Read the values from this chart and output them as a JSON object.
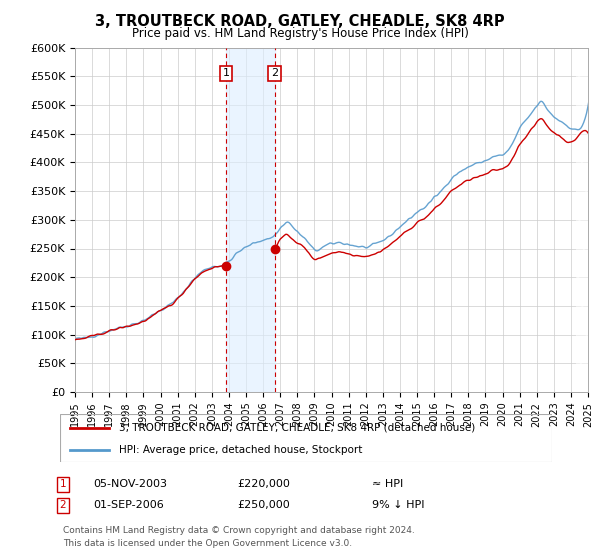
{
  "title": "3, TROUTBECK ROAD, GATLEY, CHEADLE, SK8 4RP",
  "subtitle": "Price paid vs. HM Land Registry's House Price Index (HPI)",
  "ylim": [
    0,
    600000
  ],
  "yticks": [
    0,
    50000,
    100000,
    150000,
    200000,
    250000,
    300000,
    350000,
    400000,
    450000,
    500000,
    550000,
    600000
  ],
  "ytick_labels": [
    "£0",
    "£50K",
    "£100K",
    "£150K",
    "£200K",
    "£250K",
    "£300K",
    "£350K",
    "£400K",
    "£450K",
    "£500K",
    "£550K",
    "£600K"
  ],
  "sale1_date": 2003.84,
  "sale1_price": 220000,
  "sale1_label": "05-NOV-2003",
  "sale1_price_label": "£220,000",
  "sale1_hpi_label": "≈ HPI",
  "sale2_date": 2006.67,
  "sale2_price": 250000,
  "sale2_label": "01-SEP-2006",
  "sale2_price_label": "£250,000",
  "sale2_hpi_label": "9% ↓ HPI",
  "property_color": "#cc0000",
  "hpi_color": "#5599cc",
  "sale_marker_color": "#cc0000",
  "shade_color": "#ddeeff",
  "legend1": "3, TROUTBECK ROAD, GATLEY, CHEADLE, SK8 4RP (detached house)",
  "legend2": "HPI: Average price, detached house, Stockport",
  "footnote1": "Contains HM Land Registry data © Crown copyright and database right 2024.",
  "footnote2": "This data is licensed under the Open Government Licence v3.0."
}
